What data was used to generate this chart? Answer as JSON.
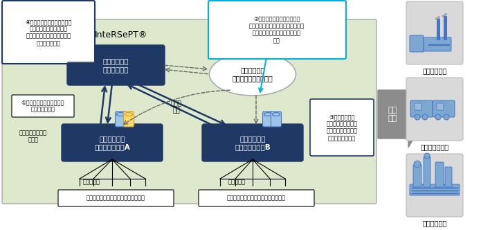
{
  "intersept_label": "InteRSePT®",
  "security_mgmt": "セキュリティ\n統合管理装置",
  "security_orch": "セキュリティ\nオーケストレーション",
  "realtime_a": "リアルタイム\n検知・対処装置A",
  "realtime_b": "リアルタイム\n検知・対処装置B",
  "sensor_info": "センサ\n情報",
  "specific_rule": "特定の運転状態用\nルール",
  "target_a": "対象機器（センサ、アクチュエータ）",
  "target_b": "対象機器（センサ、アクチュエータ）",
  "sensors_a": "各種センサ",
  "sensors_b": "各種センサ",
  "check_sensor": "①センサ情報をチェックし\n運転状態を把握",
  "market": "市場\n展開",
  "plant1": "発電プラント",
  "plant2": "新交通システム",
  "plant3": "化学プラント",
  "note1": "④制御システム全体の挙動を\n統合的に監視、特定の運\n転状態用ルールでは検知でき\nない異常を検知",
  "note2": "②運転状態や検知された異常\n情報をもとに「リアルタイム検知・\n対処装置」の通信制御ルールを\n変更",
  "note3": "③特定の運転状\n態用ルールをもとに\nパケットを分析し、\n通過・遷断を制御",
  "bg_color": "#dde8cc",
  "dark_blue": "#1f3864",
  "mid_blue": "#2e5fa3",
  "light_blue": "#4472c4",
  "arrow_gray": "#8c8c8c",
  "white": "#ffffff",
  "black": "#000000",
  "cyan_border": "#00b0d8",
  "cyl_blue": "#9dc3e6",
  "cyl_gold": "#ffd966",
  "gray_box": "#d9d9d9"
}
